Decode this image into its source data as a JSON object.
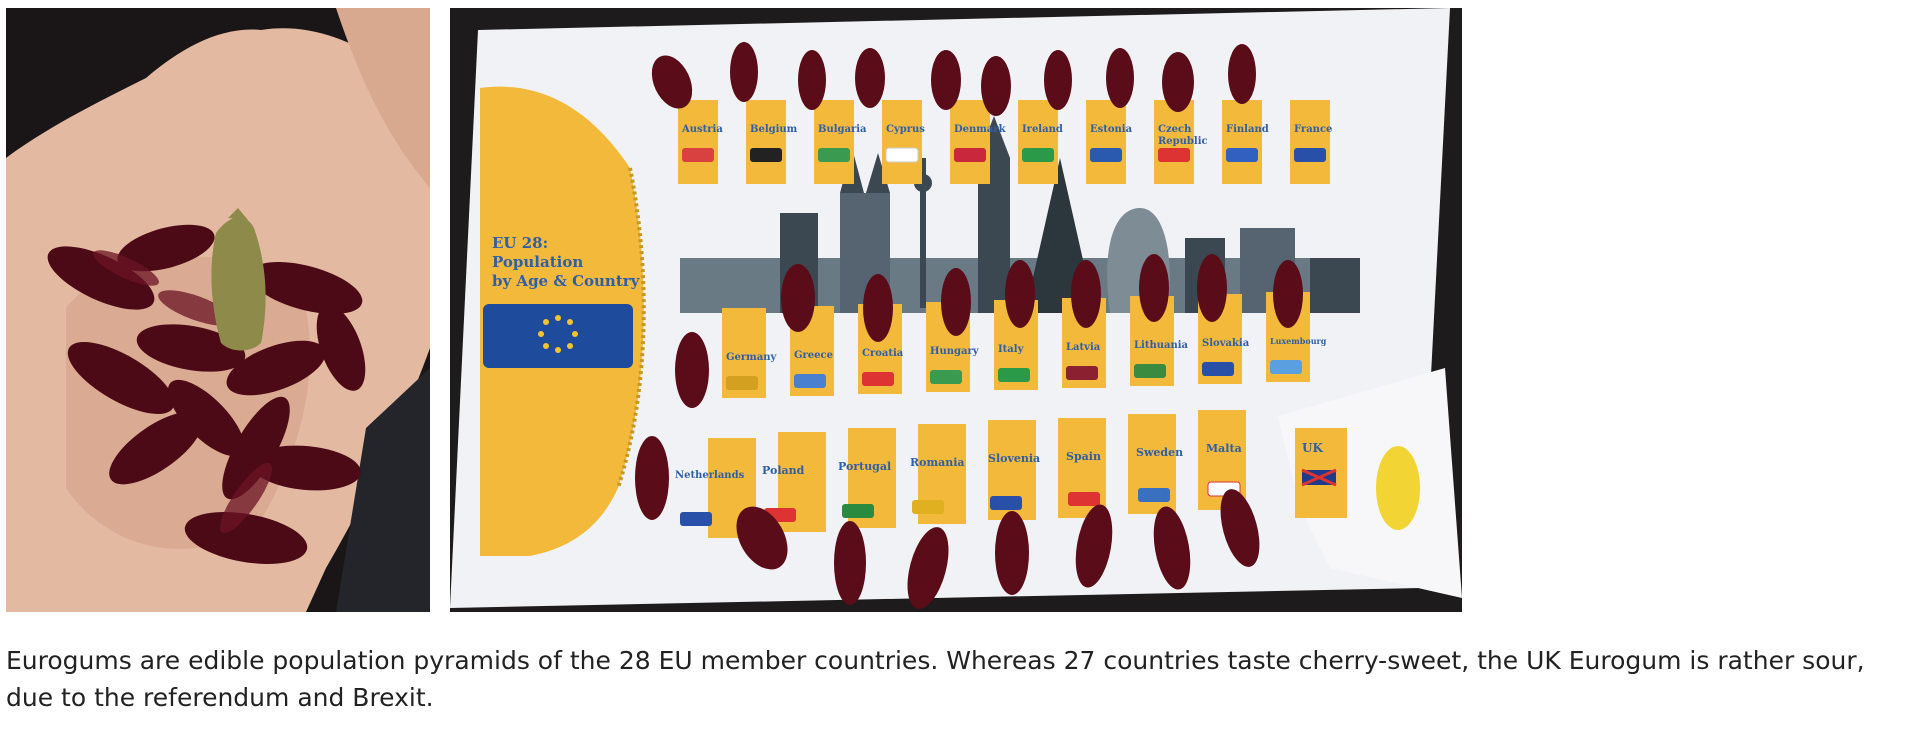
{
  "caption": "Eurogums are edible population pyramids of the 28 EU member countries. Whereas 27 countries taste cherry-sweet, the UK Eurogum is rather sour, due to the referendum and Brexit.",
  "board": {
    "title_line1": "EU 28:",
    "title_line2": "Population",
    "title_line3": "by Age & Country",
    "row1": [
      "Austria",
      "Belgium",
      "Bulgaria",
      "Cyprus",
      "Denmark",
      "Ireland",
      "Estonia",
      "Czech",
      "Finland",
      "France"
    ],
    "czech_line2": "Republic",
    "row2": [
      "Germany",
      "Greece",
      "Croatia",
      "Hungary",
      "Italy",
      "Latvia",
      "Lithuania",
      "Slovakia",
      "Luxembourg"
    ],
    "row3": [
      "Netherlands",
      "Poland",
      "Portugal",
      "Romania",
      "Slovenia",
      "Spain",
      "Sweden",
      "Malta"
    ],
    "uk": "UK"
  },
  "colors": {
    "background": "#ffffff",
    "caption_text": "#222222",
    "board_yellow": "#f3b93a",
    "gum_red": "#5a0c18",
    "uk_gum": "#f2d535",
    "eu_blue": "#1f4b9c"
  }
}
